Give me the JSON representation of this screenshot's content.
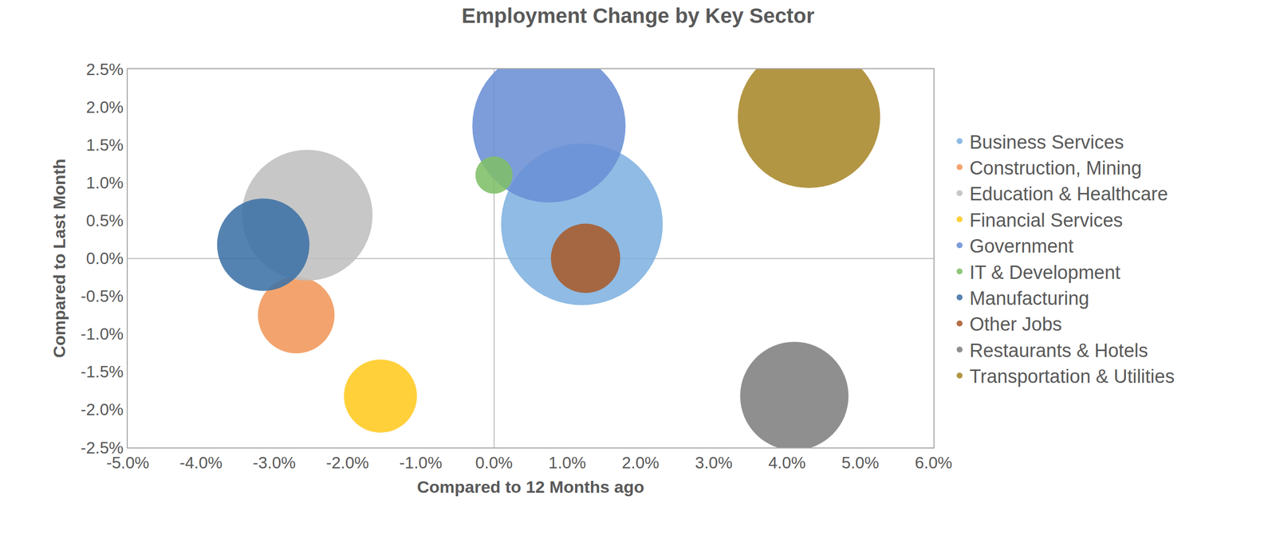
{
  "chart_data": {
    "type": "bubble",
    "title": "Employment Change by Key Sector",
    "x_label": "Compared to 12 Months ago",
    "y_label": "Compared to Last Month",
    "xlim": [
      -5,
      6
    ],
    "ylim": [
      -2.5,
      2.5
    ],
    "xticks": [
      {
        "value": -5,
        "label": "-5.0%"
      },
      {
        "value": -4,
        "label": "-4.0%"
      },
      {
        "value": -3,
        "label": "-3.0%"
      },
      {
        "value": -2,
        "label": "-2.0%"
      },
      {
        "value": -1,
        "label": "-1.0%"
      },
      {
        "value": 0,
        "label": "0.0%"
      },
      {
        "value": 1,
        "label": "1.0%"
      },
      {
        "value": 2,
        "label": "2.0%"
      },
      {
        "value": 3,
        "label": "3.0%"
      },
      {
        "value": 4,
        "label": "4.0%"
      },
      {
        "value": 5,
        "label": "5.0%"
      },
      {
        "value": 6,
        "label": "6.0%"
      }
    ],
    "yticks": [
      {
        "value": -2.5,
        "label": "-2.5%"
      },
      {
        "value": -2,
        "label": "-2.0%"
      },
      {
        "value": -1.5,
        "label": "-1.5%"
      },
      {
        "value": -1,
        "label": "-1.0%"
      },
      {
        "value": -0.5,
        "label": "-0.5%"
      },
      {
        "value": 0,
        "label": "0.0%"
      },
      {
        "value": 0.5,
        "label": "0.5%"
      },
      {
        "value": 1,
        "label": "1.0%"
      },
      {
        "value": 1.5,
        "label": "1.5%"
      },
      {
        "value": 2,
        "label": "2.0%"
      },
      {
        "value": 2.5,
        "label": "2.5%"
      }
    ],
    "grid": false,
    "legend": "right",
    "marker": "circle",
    "series": [
      {
        "name": "Business Services",
        "color": "#7fb2e0",
        "x": [
          1.2
        ],
        "values": [
          0.45
        ],
        "size": [
          49
        ]
      },
      {
        "name": "Construction, Mining",
        "color": "#f1975a",
        "x": [
          -2.7
        ],
        "values": [
          -0.75
        ],
        "size": [
          11
        ]
      },
      {
        "name": "Education & Healthcare",
        "color": "#bfbfbf",
        "x": [
          -2.55
        ],
        "values": [
          0.57
        ],
        "size": [
          32
        ]
      },
      {
        "name": "Financial Services",
        "color": "#ffc91f",
        "x": [
          -1.55
        ],
        "values": [
          -1.82
        ],
        "size": [
          10
        ]
      },
      {
        "name": "Government",
        "color": "#6a8fd5",
        "x": [
          0.75
        ],
        "values": [
          1.75
        ],
        "size": [
          44
        ]
      },
      {
        "name": "IT & Development",
        "color": "#7fbf68",
        "x": [
          0.0
        ],
        "values": [
          1.1
        ],
        "size": [
          2.6
        ]
      },
      {
        "name": "Manufacturing",
        "color": "#3d72a6",
        "x": [
          -3.15
        ],
        "values": [
          0.18
        ],
        "size": [
          16
        ]
      },
      {
        "name": "Other Jobs",
        "color": "#a85b2b",
        "x": [
          1.25
        ],
        "values": [
          0.0
        ],
        "size": [
          9
        ]
      },
      {
        "name": "Restaurants & Hotels",
        "color": "#7f7f7f",
        "x": [
          4.1
        ],
        "values": [
          -1.82
        ],
        "size": [
          22
        ]
      },
      {
        "name": "Transportation & Utilities",
        "color": "#a8882a",
        "x": [
          4.3
        ],
        "values": [
          1.87
        ],
        "size": [
          38
        ]
      }
    ]
  }
}
